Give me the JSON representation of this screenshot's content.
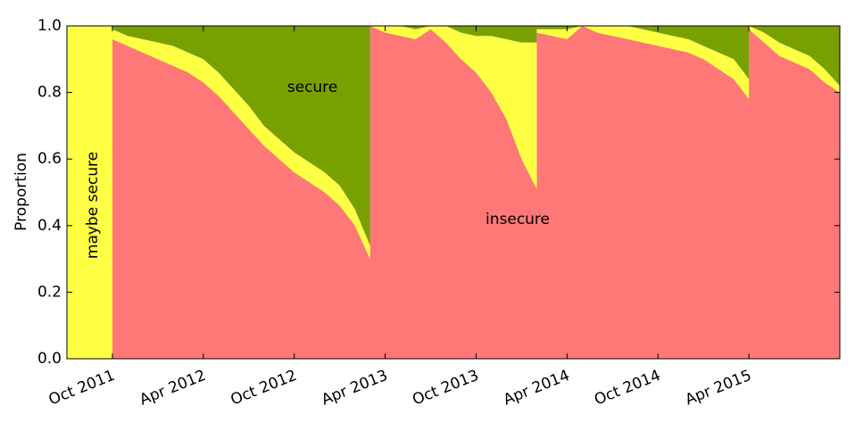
{
  "chart_data": {
    "type": "stacked-area",
    "y_label": "Proportion",
    "x": [
      "2011-07",
      "2011-10",
      "2011-10",
      "2011-11",
      "2011-12",
      "2012-01",
      "2012-02",
      "2012-03",
      "2012-04",
      "2012-05",
      "2012-06",
      "2012-07",
      "2012-08",
      "2012-09",
      "2012-10",
      "2012-11",
      "2012-12",
      "2013-01",
      "2013-02",
      "2013-03",
      "2013-03",
      "2013-04",
      "2013-05",
      "2013-06",
      "2013-07",
      "2013-08",
      "2013-09",
      "2013-10",
      "2013-11",
      "2013-12",
      "2014-01",
      "2014-02",
      "2014-02",
      "2014-03",
      "2014-04",
      "2014-05",
      "2014-06",
      "2014-07",
      "2014-08",
      "2014-09",
      "2014-10",
      "2014-11",
      "2014-12",
      "2015-01",
      "2015-02",
      "2015-03",
      "2015-04",
      "2015-04",
      "2015-05",
      "2015-06",
      "2015-07",
      "2015-08",
      "2015-09",
      "2015-10"
    ],
    "series": [
      {
        "name": "insecure",
        "color": "#ff7777",
        "values": [
          0,
          0,
          0.96,
          0.94,
          0.92,
          0.9,
          0.88,
          0.86,
          0.83,
          0.79,
          0.74,
          0.69,
          0.64,
          0.6,
          0.56,
          0.53,
          0.5,
          0.46,
          0.4,
          0.3,
          1.0,
          0.98,
          0.97,
          0.96,
          0.99,
          0.95,
          0.9,
          0.86,
          0.8,
          0.72,
          0.6,
          0.51,
          0.98,
          0.97,
          0.96,
          1.0,
          0.98,
          0.97,
          0.96,
          0.95,
          0.94,
          0.93,
          0.92,
          0.9,
          0.87,
          0.84,
          0.78,
          0.99,
          0.95,
          0.91,
          0.89,
          0.87,
          0.83,
          0.8
        ]
      },
      {
        "name": "maybe secure",
        "color": "#ffff44",
        "values": [
          1.0,
          1.0,
          0.03,
          0.03,
          0.04,
          0.05,
          0.06,
          0.06,
          0.07,
          0.07,
          0.07,
          0.07,
          0.06,
          0.06,
          0.06,
          0.06,
          0.06,
          0.06,
          0.05,
          0.04,
          0,
          0.02,
          0.03,
          0.03,
          0.01,
          0.05,
          0.08,
          0.11,
          0.17,
          0.24,
          0.35,
          0.44,
          0.01,
          0.02,
          0.03,
          0,
          0.02,
          0.03,
          0.04,
          0.04,
          0.04,
          0.04,
          0.04,
          0.04,
          0.05,
          0.06,
          0.06,
          0.01,
          0.03,
          0.04,
          0.04,
          0.04,
          0.04,
          0.02
        ]
      },
      {
        "name": "secure",
        "color": "#77a000",
        "values": [
          0,
          0,
          0.01,
          0.03,
          0.04,
          0.05,
          0.06,
          0.08,
          0.1,
          0.14,
          0.19,
          0.24,
          0.3,
          0.34,
          0.38,
          0.41,
          0.44,
          0.48,
          0.55,
          0.66,
          0,
          0,
          0,
          0.01,
          0,
          0,
          0.02,
          0.03,
          0.03,
          0.04,
          0.05,
          0.05,
          0.01,
          0.01,
          0.01,
          0,
          0,
          0,
          0,
          0.01,
          0.02,
          0.03,
          0.04,
          0.06,
          0.08,
          0.1,
          0.16,
          0,
          0.02,
          0.05,
          0.07,
          0.09,
          0.13,
          0.18
        ]
      }
    ],
    "xlim": [
      "2011-07",
      "2015-10"
    ],
    "xticks": [
      {
        "value": "2011-10",
        "label": "Oct 2011"
      },
      {
        "value": "2012-04",
        "label": "Apr 2012"
      },
      {
        "value": "2012-10",
        "label": "Oct 2012"
      },
      {
        "value": "2013-04",
        "label": "Apr 2013"
      },
      {
        "value": "2013-10",
        "label": "Oct 2013"
      },
      {
        "value": "2014-04",
        "label": "Apr 2014"
      },
      {
        "value": "2014-10",
        "label": "Oct 2014"
      },
      {
        "value": "2015-04",
        "label": "Apr 2015"
      }
    ],
    "ylim": [
      0,
      1
    ],
    "yticks": [
      {
        "value": 0,
        "label": "0.0"
      },
      {
        "value": 0.2,
        "label": "0.2"
      },
      {
        "value": 0.4,
        "label": "0.4"
      },
      {
        "value": 0.6,
        "label": "0.6"
      },
      {
        "value": 0.8,
        "label": "0.8"
      },
      {
        "value": 1,
        "label": "1.0"
      }
    ]
  }
}
